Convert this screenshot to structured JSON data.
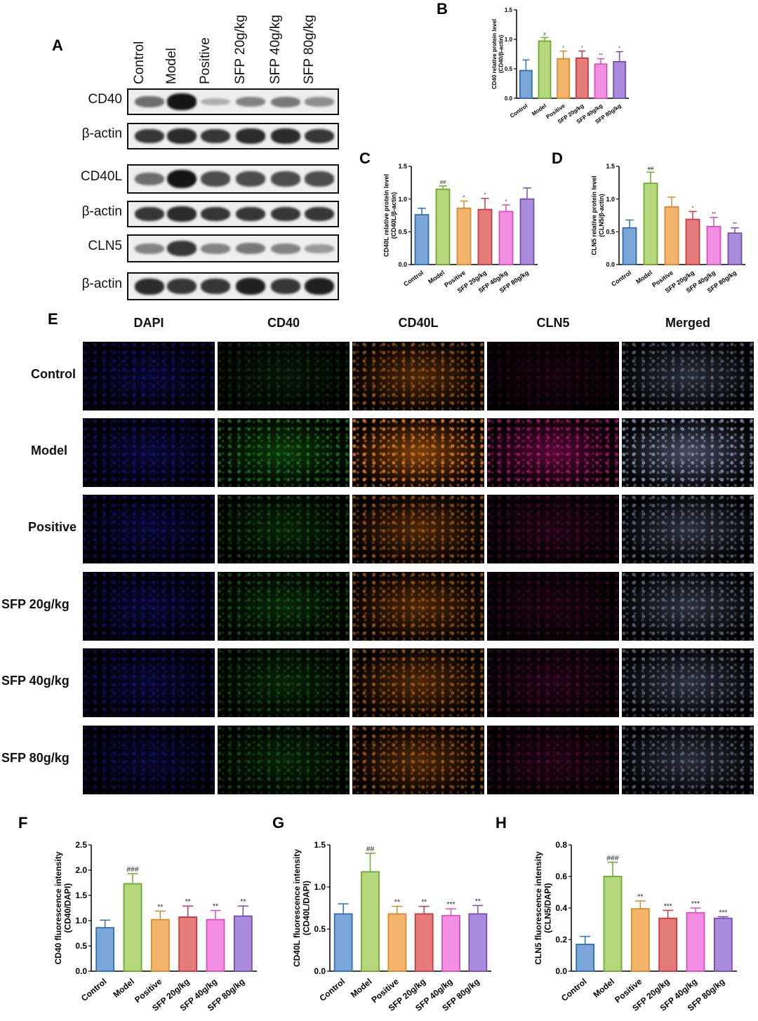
{
  "panels": {
    "A": "A",
    "B": "B",
    "C": "C",
    "D": "D",
    "E": "E",
    "F": "F",
    "G": "G",
    "H": "H"
  },
  "blot": {
    "lanes": [
      "Control",
      "Model",
      "Positive",
      "SFP 20g/kg",
      "SFP 40g/kg",
      "SFP 80g/kg"
    ],
    "rows": [
      "CD40",
      "β-actin",
      "CD40L",
      "β-actin",
      "CLN5",
      "β-actin"
    ],
    "band_intensity": [
      [
        0.55,
        0.95,
        0.25,
        0.45,
        0.5,
        0.4
      ],
      [
        0.8,
        0.85,
        0.8,
        0.85,
        0.85,
        0.8
      ],
      [
        0.55,
        0.95,
        0.7,
        0.7,
        0.7,
        0.7
      ],
      [
        0.8,
        0.85,
        0.8,
        0.8,
        0.8,
        0.8
      ],
      [
        0.45,
        0.8,
        0.45,
        0.5,
        0.45,
        0.35
      ],
      [
        0.85,
        0.8,
        0.8,
        0.9,
        0.8,
        0.9
      ]
    ]
  },
  "if_grid": {
    "columns": [
      "DAPI",
      "CD40",
      "CD40L",
      "CLN5",
      "Merged"
    ],
    "rows": [
      "Control",
      "Model",
      "Positive",
      "SFP 20g/kg",
      "SFP 40g/kg",
      "SFP 80g/kg"
    ],
    "column_colors": [
      "#1a1aa8",
      "#1f8a1f",
      "#d9731a",
      "#c0167a",
      "#7f8fb0"
    ],
    "signal_level": [
      [
        0.45,
        0.25,
        0.55,
        0.15,
        0.5
      ],
      [
        0.5,
        0.65,
        0.9,
        0.7,
        0.85
      ],
      [
        0.45,
        0.4,
        0.55,
        0.25,
        0.55
      ],
      [
        0.45,
        0.45,
        0.55,
        0.2,
        0.55
      ],
      [
        0.45,
        0.4,
        0.55,
        0.25,
        0.55
      ],
      [
        0.4,
        0.4,
        0.55,
        0.25,
        0.5
      ]
    ]
  },
  "chart_data": [
    {
      "panel": "B",
      "type": "bar",
      "categories": [
        "Control",
        "Model",
        "Positive",
        "SFP 20g/kg",
        "SFP 40g/kg",
        "SFP 80g/kg"
      ],
      "values": [
        0.47,
        0.97,
        0.67,
        0.68,
        0.58,
        0.62
      ],
      "errors": [
        0.18,
        0.06,
        0.13,
        0.12,
        0.09,
        0.17
      ],
      "significance": [
        "",
        "#",
        "*",
        "*",
        "**",
        "*"
      ],
      "ylabel": "CD40 relative protein level\n(CD40/β-actin)",
      "ylim": [
        0,
        1.5
      ],
      "yticks": [
        0.0,
        0.5,
        1.0,
        1.5
      ],
      "tick_labels": [
        "0.0",
        "0.5",
        "1.0",
        "1.5"
      ],
      "colors": [
        "#2f6fb5",
        "#6cab2e",
        "#d98b2b",
        "#c83a3f",
        "#d94fc0",
        "#7a4bb3"
      ],
      "fills": [
        "#7aa7d8",
        "#b6d77c",
        "#f2b56b",
        "#e67b7b",
        "#f38fe3",
        "#a98cdc"
      ]
    },
    {
      "panel": "C",
      "type": "bar",
      "categories": [
        "Control",
        "Model",
        "Positive",
        "SFP 20g/kg",
        "SFP 40g/kg",
        "SFP 80g/kg"
      ],
      "values": [
        0.76,
        1.15,
        0.86,
        0.84,
        0.81,
        1.0
      ],
      "errors": [
        0.1,
        0.05,
        0.11,
        0.17,
        0.1,
        0.17
      ],
      "significance": [
        "",
        "##",
        "*",
        "*",
        "*",
        ""
      ],
      "ylabel": "CD40L relative protein level\n(CD40L/β-actin)",
      "ylim": [
        0,
        1.5
      ],
      "yticks": [
        0.0,
        0.5,
        1.0,
        1.5
      ],
      "tick_labels": [
        "0.0",
        "0.5",
        "1.0",
        "1.5"
      ],
      "colors": [
        "#2f6fb5",
        "#6cab2e",
        "#d98b2b",
        "#c83a3f",
        "#d94fc0",
        "#7a4bb3"
      ],
      "fills": [
        "#7aa7d8",
        "#b6d77c",
        "#f2b56b",
        "#e67b7b",
        "#f38fe3",
        "#a98cdc"
      ]
    },
    {
      "panel": "D",
      "type": "bar",
      "categories": [
        "Control",
        "Model",
        "Positive",
        "SFP 20g/kg",
        "SFP 40g/kg",
        "SFP 80g/kg"
      ],
      "values": [
        0.56,
        1.24,
        0.88,
        0.69,
        0.58,
        0.48
      ],
      "errors": [
        0.12,
        0.17,
        0.15,
        0.12,
        0.14,
        0.08
      ],
      "significance": [
        "",
        "##",
        "",
        "*",
        "**",
        "**"
      ],
      "ylabel": "CLN5 relative protein level\n(CLN5/β-actin)",
      "ylim": [
        0,
        1.5
      ],
      "yticks": [
        0.0,
        0.5,
        1.0,
        1.5
      ],
      "tick_labels": [
        "0.0",
        "0.5",
        "1.0",
        "1.5"
      ],
      "colors": [
        "#2f6fb5",
        "#6cab2e",
        "#d98b2b",
        "#c83a3f",
        "#d94fc0",
        "#7a4bb3"
      ],
      "fills": [
        "#7aa7d8",
        "#b6d77c",
        "#f2b56b",
        "#e67b7b",
        "#f38fe3",
        "#a98cdc"
      ]
    },
    {
      "panel": "F",
      "type": "bar",
      "categories": [
        "Control",
        "Model",
        "Positive",
        "SFP 20g/kg",
        "SFP 40g/kg",
        "SFP 80g/kg"
      ],
      "values": [
        0.86,
        1.73,
        1.02,
        1.07,
        1.02,
        1.09
      ],
      "errors": [
        0.15,
        0.2,
        0.17,
        0.22,
        0.18,
        0.2
      ],
      "significance": [
        "",
        "###",
        "**",
        "**",
        "**",
        "**"
      ],
      "ylabel": "CD40 fluorescence intensity\n(CD40/DAPI)",
      "ylim": [
        0,
        2.5
      ],
      "yticks": [
        0.0,
        0.5,
        1.0,
        1.5,
        2.0,
        2.5
      ],
      "tick_labels": [
        "0.0",
        "0.5",
        "1.0",
        "1.5",
        "2.0",
        "2.5"
      ],
      "colors": [
        "#2f6fb5",
        "#6cab2e",
        "#d98b2b",
        "#c83a3f",
        "#d94fc0",
        "#7a4bb3"
      ],
      "fills": [
        "#7aa7d8",
        "#b6d77c",
        "#f2b56b",
        "#e67b7b",
        "#f38fe3",
        "#a98cdc"
      ]
    },
    {
      "panel": "G",
      "type": "bar",
      "categories": [
        "Control",
        "Model",
        "Positive",
        "SFP 20g/kg",
        "SFP 40g/kg",
        "SFP 80g/kg"
      ],
      "values": [
        0.68,
        1.18,
        0.68,
        0.68,
        0.66,
        0.68
      ],
      "errors": [
        0.12,
        0.22,
        0.09,
        0.09,
        0.08,
        0.1
      ],
      "significance": [
        "",
        "##",
        "**",
        "**",
        "***",
        "**"
      ],
      "ylabel": "CD40L fluorescence intensity\n(CD40L/DAPI)",
      "ylim": [
        0,
        1.5
      ],
      "yticks": [
        0.0,
        0.5,
        1.0,
        1.5
      ],
      "tick_labels": [
        "0.0",
        "0.5",
        "1.0",
        "1.5"
      ],
      "colors": [
        "#2f6fb5",
        "#6cab2e",
        "#d98b2b",
        "#c83a3f",
        "#d94fc0",
        "#7a4bb3"
      ],
      "fills": [
        "#7aa7d8",
        "#b6d77c",
        "#f2b56b",
        "#e67b7b",
        "#f38fe3",
        "#a98cdc"
      ]
    },
    {
      "panel": "H",
      "type": "bar",
      "categories": [
        "Control",
        "Model",
        "Positive",
        "SFP 20g/kg",
        "SFP 40g/kg",
        "SFP 80g/kg"
      ],
      "values": [
        0.17,
        0.6,
        0.395,
        0.335,
        0.37,
        0.335
      ],
      "errors": [
        0.05,
        0.09,
        0.05,
        0.05,
        0.03,
        0.01
      ],
      "significance": [
        "",
        "###",
        "**",
        "***",
        "***",
        "***"
      ],
      "ylabel": "CLN5 fluorescence intensity\n(CLN5/DAPI)",
      "ylim": [
        0,
        0.8
      ],
      "yticks": [
        0.0,
        0.2,
        0.4,
        0.6,
        0.8
      ],
      "tick_labels": [
        "0.0",
        "0.2",
        "0.4",
        "0.6",
        "0.8"
      ],
      "colors": [
        "#2f6fb5",
        "#6cab2e",
        "#d98b2b",
        "#c83a3f",
        "#d94fc0",
        "#7a4bb3"
      ],
      "fills": [
        "#7aa7d8",
        "#b6d77c",
        "#f2b56b",
        "#e67b7b",
        "#f38fe3",
        "#a98cdc"
      ]
    }
  ]
}
